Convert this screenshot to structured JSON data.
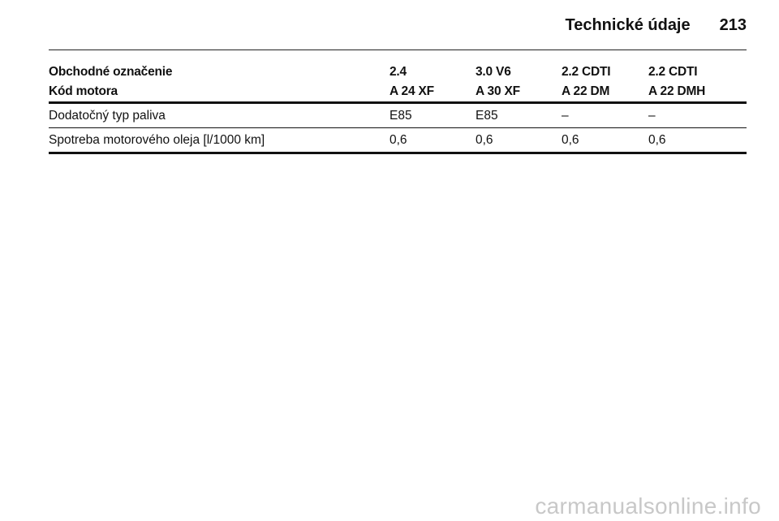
{
  "header": {
    "section_title": "Technické údaje",
    "page_number": "213"
  },
  "table": {
    "header_rows": [
      [
        "Obchodné označenie",
        "2.4",
        "3.0 V6",
        "2.2 CDTI",
        "2.2 CDTI"
      ],
      [
        "Kód motora",
        "A 24 XF",
        "A 30 XF",
        "A 22 DM",
        "A 22 DMH"
      ]
    ],
    "body_rows": [
      [
        "Dodatočný typ paliva",
        "E85",
        "E85",
        "–",
        "–"
      ],
      [
        "Spotreba motorového oleja [l/1000 km]",
        "0,6",
        "0,6",
        "0,6",
        "0,6"
      ]
    ]
  },
  "watermark": "carmanualsonline.info"
}
